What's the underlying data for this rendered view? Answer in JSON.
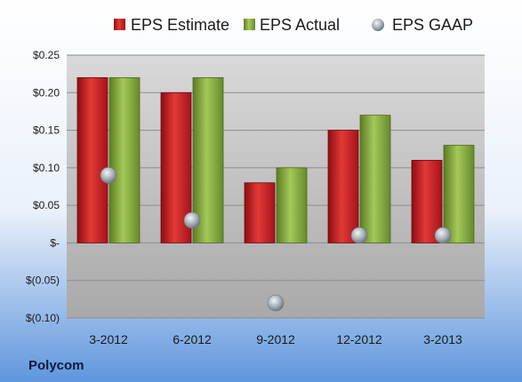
{
  "chart_data": {
    "type": "bar",
    "categories": [
      "3-2012",
      "6-2012",
      "9-2012",
      "12-2012",
      "3-2013"
    ],
    "series": [
      {
        "name": "EPS Estimate",
        "type": "bar",
        "values": [
          0.22,
          0.2,
          0.08,
          0.15,
          0.11
        ],
        "color": "#c0141a"
      },
      {
        "name": "EPS Actual",
        "type": "bar",
        "values": [
          0.22,
          0.22,
          0.1,
          0.17,
          0.13
        ],
        "color": "#7fa83a"
      },
      {
        "name": "EPS GAAP",
        "type": "scatter",
        "values": [
          0.09,
          0.03,
          -0.08,
          0.01,
          0.01
        ],
        "color": "#9aa3ad"
      }
    ],
    "yticks": [
      0.25,
      0.2,
      0.15,
      0.1,
      0.05,
      0,
      -0.05,
      -0.1
    ],
    "ytick_labels": [
      "$0.25",
      "$0.20",
      "$0.15",
      "$0.10",
      "$0.05",
      "$-",
      "$(0.05)",
      "$(0.10)"
    ],
    "ylim": [
      -0.1,
      0.25
    ],
    "grid": true,
    "legend_position": "top",
    "company": "Polycom"
  }
}
